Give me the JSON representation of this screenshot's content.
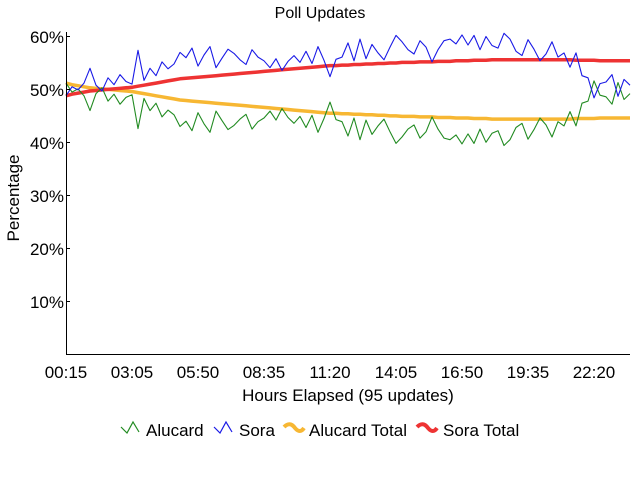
{
  "chart_data": {
    "type": "line",
    "title": "Poll Updates",
    "xlabel": "Hours Elapsed (95 updates)",
    "ylabel": "Percentage",
    "ylim": [
      0,
      60
    ],
    "y_ticks": [
      "10%",
      "20%",
      "30%",
      "40%",
      "50%",
      "60%"
    ],
    "y_tick_values": [
      10,
      20,
      30,
      40,
      50,
      60
    ],
    "x_ticks": [
      "00:15",
      "03:05",
      "05:50",
      "08:35",
      "11:20",
      "14:05",
      "16:50",
      "19:35",
      "22:20"
    ],
    "x_tick_indices": [
      0,
      11,
      22,
      33,
      44,
      55,
      66,
      77,
      88
    ],
    "update_count": 95,
    "grid": false,
    "legend_position": "bottom",
    "series": [
      {
        "name": "Alucard",
        "color": "#228B22",
        "values": [
          51.2,
          49.5,
          50.1,
          48.8,
          46.0,
          49.2,
          50.3,
          47.8,
          49.1,
          47.2,
          48.5,
          49.0,
          42.6,
          48.3,
          46.0,
          47.4,
          44.8,
          46.1,
          45.2,
          43.0,
          44.0,
          42.2,
          45.6,
          43.5,
          41.9,
          45.9,
          44.1,
          42.4,
          43.2,
          44.4,
          45.3,
          42.5,
          43.9,
          44.6,
          45.9,
          44.2,
          46.4,
          44.7,
          43.6,
          44.9,
          42.8,
          45.1,
          41.9,
          44.5,
          47.6,
          44.3,
          43.9,
          41.2,
          44.6,
          40.5,
          44.2,
          41.5,
          43.1,
          44.4,
          42.0,
          39.8,
          41.0,
          42.5,
          43.3,
          40.8,
          42.0,
          44.8,
          42.5,
          40.8,
          40.5,
          41.4,
          39.7,
          41.6,
          39.8,
          42.5,
          40.0,
          41.7,
          42.2,
          39.4,
          40.5,
          42.8,
          43.6,
          40.6,
          42.4,
          44.6,
          43.3,
          41.0,
          43.9,
          43.1,
          45.8,
          43.1,
          47.4,
          47.8,
          51.6,
          48.9,
          48.6,
          47.2,
          51.3,
          48.1,
          49.2
        ]
      },
      {
        "name": "Sora",
        "color": "#1a1ae6",
        "values": [
          48.8,
          50.5,
          49.9,
          51.2,
          54.0,
          50.8,
          49.7,
          52.2,
          50.9,
          52.8,
          51.5,
          51.0,
          57.4,
          51.7,
          54.0,
          52.6,
          55.2,
          53.9,
          54.8,
          57.0,
          56.0,
          57.8,
          54.4,
          56.5,
          58.1,
          54.1,
          55.9,
          57.6,
          56.8,
          55.6,
          54.7,
          57.5,
          56.1,
          55.4,
          54.1,
          55.8,
          53.6,
          55.3,
          56.4,
          55.1,
          57.2,
          54.9,
          58.1,
          55.5,
          52.4,
          55.7,
          56.1,
          58.8,
          55.4,
          59.5,
          55.8,
          58.5,
          56.9,
          55.6,
          58.0,
          60.2,
          59.0,
          57.5,
          56.7,
          59.2,
          58.0,
          55.2,
          57.5,
          59.2,
          59.5,
          58.6,
          60.3,
          58.4,
          60.2,
          57.5,
          60.0,
          58.3,
          57.8,
          60.6,
          59.5,
          57.2,
          56.4,
          59.4,
          57.6,
          55.4,
          56.7,
          59.0,
          56.1,
          56.9,
          54.2,
          56.9,
          52.6,
          52.2,
          48.4,
          51.1,
          51.4,
          52.8,
          48.7,
          51.9,
          50.8
        ]
      },
      {
        "name": "Alucard Total",
        "color": "#f7b733",
        "values": [
          51.2,
          50.9,
          50.7,
          50.5,
          50.3,
          50.2,
          50.1,
          50.0,
          49.9,
          49.8,
          49.7,
          49.6,
          49.4,
          49.2,
          49.0,
          48.8,
          48.6,
          48.4,
          48.2,
          48.0,
          47.9,
          47.8,
          47.7,
          47.6,
          47.5,
          47.4,
          47.3,
          47.2,
          47.1,
          47.0,
          46.9,
          46.8,
          46.7,
          46.6,
          46.5,
          46.4,
          46.3,
          46.2,
          46.1,
          46.0,
          45.9,
          45.8,
          45.7,
          45.6,
          45.5,
          45.5,
          45.4,
          45.4,
          45.3,
          45.3,
          45.2,
          45.2,
          45.1,
          45.1,
          45.0,
          45.0,
          44.9,
          44.9,
          44.9,
          44.8,
          44.8,
          44.8,
          44.7,
          44.7,
          44.7,
          44.6,
          44.6,
          44.6,
          44.5,
          44.5,
          44.5,
          44.4,
          44.4,
          44.4,
          44.4,
          44.4,
          44.4,
          44.4,
          44.4,
          44.4,
          44.4,
          44.4,
          44.4,
          44.4,
          44.4,
          44.5,
          44.5,
          44.5,
          44.5,
          44.6,
          44.6,
          44.6,
          44.6,
          44.6,
          44.6
        ]
      },
      {
        "name": "Sora Total",
        "color": "#ee3333",
        "values": [
          48.8,
          49.1,
          49.3,
          49.5,
          49.7,
          49.8,
          49.9,
          50.0,
          50.1,
          50.2,
          50.3,
          50.4,
          50.6,
          50.8,
          51.0,
          51.2,
          51.4,
          51.6,
          51.8,
          52.0,
          52.1,
          52.2,
          52.3,
          52.4,
          52.5,
          52.6,
          52.7,
          52.8,
          52.9,
          53.0,
          53.1,
          53.2,
          53.3,
          53.4,
          53.5,
          53.6,
          53.7,
          53.8,
          53.9,
          54.0,
          54.1,
          54.2,
          54.3,
          54.4,
          54.5,
          54.5,
          54.6,
          54.6,
          54.7,
          54.7,
          54.8,
          54.8,
          54.9,
          54.9,
          55.0,
          55.0,
          55.1,
          55.1,
          55.1,
          55.2,
          55.2,
          55.2,
          55.3,
          55.3,
          55.3,
          55.4,
          55.4,
          55.4,
          55.5,
          55.5,
          55.5,
          55.6,
          55.6,
          55.6,
          55.6,
          55.6,
          55.6,
          55.6,
          55.6,
          55.6,
          55.6,
          55.6,
          55.6,
          55.6,
          55.6,
          55.5,
          55.5,
          55.5,
          55.5,
          55.4,
          55.4,
          55.4,
          55.4,
          55.4,
          55.4
        ]
      }
    ]
  }
}
